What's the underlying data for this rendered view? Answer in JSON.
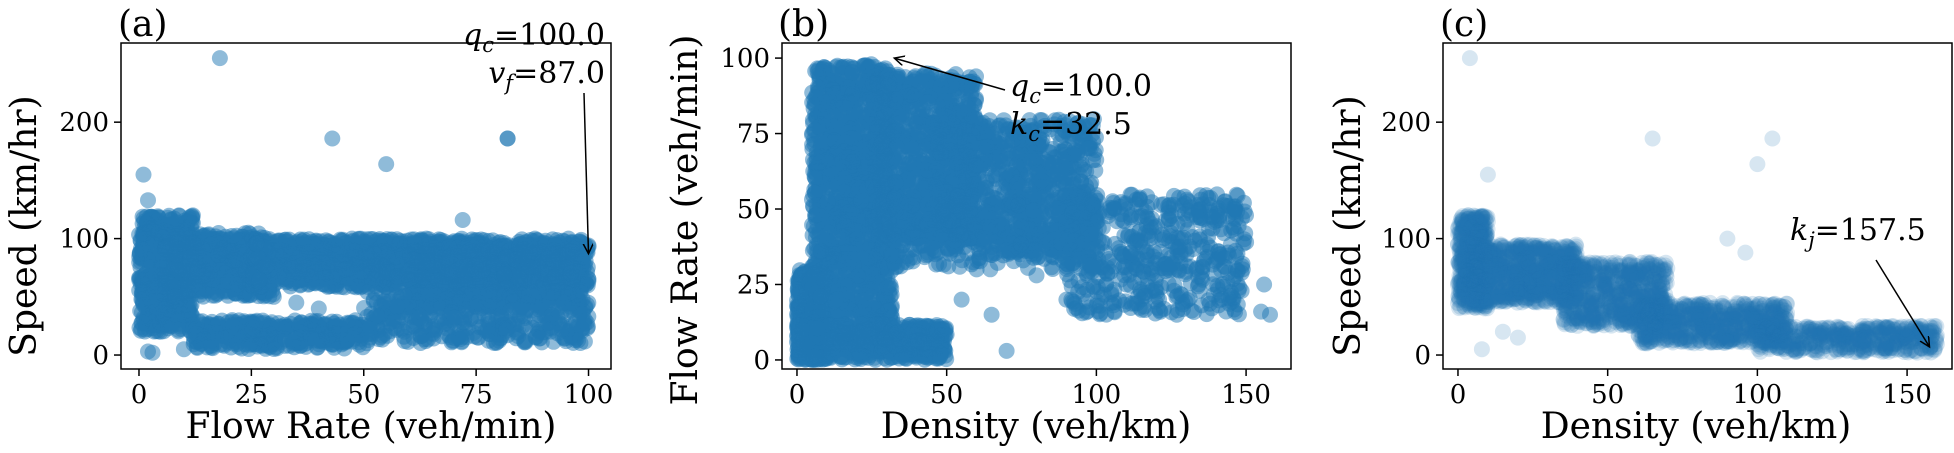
{
  "colors": {
    "series": "#1f77b4",
    "axis": "#000000",
    "background": "#ffffff"
  },
  "chart_data": [
    {
      "type": "scatter",
      "panel": "(a)",
      "xlabel": "Flow Rate (veh/min)",
      "ylabel": "Speed (km/hr)",
      "xlim": [
        -4,
        105
      ],
      "ylim": [
        -12,
        268
      ],
      "xticks": [
        0,
        25,
        50,
        75,
        100
      ],
      "yticks": [
        0,
        100,
        200
      ],
      "grid": false,
      "marker_opacity": 0.5,
      "annotation": {
        "line1_sym": "q",
        "line1_sub": "c",
        "line1_val": "=100.0",
        "line2_sym": "v",
        "line2_sub": "f",
        "line2_val": "=87.0",
        "target": [
          100,
          87
        ]
      },
      "outliers": [
        {
          "x": 18,
          "y": 255
        },
        {
          "x": 43,
          "y": 186
        },
        {
          "x": 55,
          "y": 164
        },
        {
          "x": 82,
          "y": 186
        },
        {
          "x": 82,
          "y": 186
        },
        {
          "x": 72,
          "y": 116
        },
        {
          "x": 1,
          "y": 155
        },
        {
          "x": 2,
          "y": 133
        },
        {
          "x": 100,
          "y": 65
        },
        {
          "x": 2,
          "y": 3
        },
        {
          "x": 3,
          "y": 2
        },
        {
          "x": 10,
          "y": 5
        },
        {
          "x": 30,
          "y": 50
        },
        {
          "x": 35,
          "y": 45
        },
        {
          "x": 40,
          "y": 40
        },
        {
          "x": 95,
          "y": 75
        },
        {
          "x": 96,
          "y": 70
        }
      ],
      "mass": [
        {
          "xmin": 0,
          "xmax": 12,
          "ymin": 20,
          "ymax": 120,
          "n": 500
        },
        {
          "xmin": 5,
          "xmax": 30,
          "ymin": 50,
          "ymax": 105,
          "n": 600
        },
        {
          "xmin": 25,
          "xmax": 100,
          "ymin": 58,
          "ymax": 100,
          "n": 1400
        },
        {
          "xmin": 60,
          "xmax": 100,
          "ymin": 40,
          "ymax": 95,
          "n": 500
        },
        {
          "xmin": 12,
          "xmax": 50,
          "ymin": 5,
          "ymax": 30,
          "n": 350
        },
        {
          "xmin": 50,
          "xmax": 100,
          "ymin": 10,
          "ymax": 55,
          "n": 400
        }
      ]
    },
    {
      "type": "scatter",
      "panel": "(b)",
      "xlabel": "Density (veh/km)",
      "ylabel": "Flow Rate (veh/min)",
      "xlim": [
        -5,
        165
      ],
      "ylim": [
        -3,
        105
      ],
      "xticks": [
        0,
        50,
        100,
        150
      ],
      "yticks": [
        0,
        25,
        50,
        75,
        100
      ],
      "grid": false,
      "marker_opacity": 0.5,
      "annotation": {
        "line1_sym": "q",
        "line1_sub": "c",
        "line1_val": "=100.0",
        "line2_sym": "k",
        "line2_sub": "c",
        "line2_val": "=32.5",
        "target": [
          32.5,
          100
        ]
      },
      "outliers": [
        {
          "x": 150,
          "y": 39
        },
        {
          "x": 155,
          "y": 16
        },
        {
          "x": 158,
          "y": 15
        },
        {
          "x": 156,
          "y": 25
        },
        {
          "x": 70,
          "y": 3
        },
        {
          "x": 45,
          "y": 37
        },
        {
          "x": 60,
          "y": 30
        },
        {
          "x": 80,
          "y": 28
        },
        {
          "x": 90,
          "y": 20
        },
        {
          "x": 100,
          "y": 18
        },
        {
          "x": 110,
          "y": 25
        },
        {
          "x": 55,
          "y": 20
        },
        {
          "x": 65,
          "y": 15
        }
      ],
      "mass": [
        {
          "xmin": 0,
          "xmax": 10,
          "ymin": 0,
          "ymax": 30,
          "n": 500
        },
        {
          "xmin": 5,
          "xmax": 32,
          "ymin": 5,
          "ymax": 98,
          "n": 1400
        },
        {
          "xmin": 25,
          "xmax": 60,
          "ymin": 40,
          "ymax": 95,
          "n": 900
        },
        {
          "xmin": 45,
          "xmax": 100,
          "ymin": 35,
          "ymax": 80,
          "n": 800
        },
        {
          "xmin": 90,
          "xmax": 150,
          "ymin": 15,
          "ymax": 55,
          "n": 500
        },
        {
          "xmin": 0,
          "xmax": 50,
          "ymin": 0,
          "ymax": 12,
          "n": 500
        },
        {
          "xmin": 30,
          "xmax": 100,
          "ymin": 30,
          "ymax": 55,
          "n": 300
        }
      ]
    },
    {
      "type": "scatter",
      "panel": "(c)",
      "xlabel": "Density (veh/km)",
      "ylabel": "Speed (km/hr)",
      "xlim": [
        -5,
        165
      ],
      "ylim": [
        -12,
        268
      ],
      "xticks": [
        0,
        50,
        100,
        150
      ],
      "yticks": [
        0,
        100,
        200
      ],
      "grid": false,
      "marker_opacity": 0.18,
      "annotation": {
        "line1_sym": "k",
        "line1_sub": "j",
        "line1_val": "=157.5",
        "target": [
          157.5,
          7
        ]
      },
      "outliers": [
        {
          "x": 4,
          "y": 255
        },
        {
          "x": 10,
          "y": 155
        },
        {
          "x": 65,
          "y": 186
        },
        {
          "x": 100,
          "y": 164
        },
        {
          "x": 105,
          "y": 186
        },
        {
          "x": 90,
          "y": 100
        },
        {
          "x": 96,
          "y": 88
        },
        {
          "x": 15,
          "y": 20
        },
        {
          "x": 20,
          "y": 15
        },
        {
          "x": 8,
          "y": 5
        },
        {
          "x": 150,
          "y": 15
        },
        {
          "x": 145,
          "y": 20
        }
      ],
      "mass": [
        {
          "xmin": 0,
          "xmax": 10,
          "ymin": 40,
          "ymax": 120,
          "n": 500
        },
        {
          "xmin": 5,
          "xmax": 40,
          "ymin": 45,
          "ymax": 95,
          "n": 800
        },
        {
          "xmin": 35,
          "xmax": 70,
          "ymin": 25,
          "ymax": 80,
          "n": 700
        },
        {
          "xmin": 60,
          "xmax": 110,
          "ymin": 10,
          "ymax": 45,
          "n": 700
        },
        {
          "xmin": 100,
          "xmax": 160,
          "ymin": 2,
          "ymax": 25,
          "n": 500
        }
      ]
    }
  ]
}
